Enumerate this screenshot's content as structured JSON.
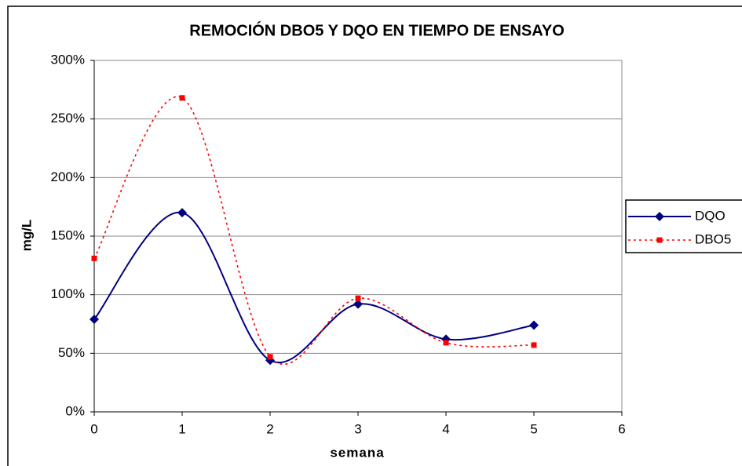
{
  "chart_data": {
    "type": "line",
    "title": "REMOCIÓN DBO5 Y DQO EN TIEMPO DE ENSAYO",
    "x_label": "semana",
    "y_label": "mg/L",
    "x": [
      0,
      1,
      2,
      3,
      4,
      5
    ],
    "series": [
      {
        "name": "DQO",
        "color": "#000080",
        "values": [
          79,
          170,
          44,
          92,
          62,
          74
        ]
      },
      {
        "name": "DBO5",
        "color": "#ff0000",
        "values": [
          131,
          268,
          47,
          97,
          59,
          57
        ]
      }
    ],
    "xlim": [
      0,
      6
    ],
    "xticks": [
      0,
      1,
      2,
      3,
      4,
      5,
      6
    ],
    "ylim": [
      0,
      300
    ],
    "yticks": [
      {
        "value": 0,
        "label": "0%"
      },
      {
        "value": 50,
        "label": "50%"
      },
      {
        "value": 100,
        "label": "100%"
      },
      {
        "value": 150,
        "label": "150%"
      },
      {
        "value": 200,
        "label": "200%"
      },
      {
        "value": 250,
        "label": "250%"
      },
      {
        "value": 300,
        "label": "300%"
      }
    ],
    "grid": true,
    "smooth": true
  }
}
